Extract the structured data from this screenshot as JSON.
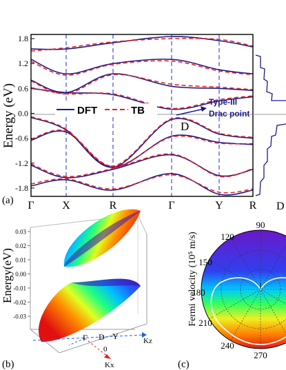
{
  "panel_a": {
    "label": "(a)",
    "ylabel": "Energy (eV)",
    "yticks": [
      "1.8",
      "1.2",
      "0.6",
      "0.0",
      "-0.6",
      "-1.2",
      "-1.8"
    ],
    "xticks": [
      "Γ",
      "X",
      "R",
      "Γ",
      "Y",
      "R"
    ],
    "legend": {
      "dft": "DFT",
      "tb": "TB"
    },
    "annotation": {
      "line1": "Type-III",
      "line2": "Drac point",
      "point": "D"
    },
    "dos_xlabel": "D"
  },
  "panel_b": {
    "label": "(b)",
    "zlabel": "Energy(eV)",
    "zticks": [
      "0.03",
      "0.02",
      "0.01",
      "0.00",
      "-0.01",
      "-0.02",
      "-0.03"
    ],
    "base_labels": {
      "gamma": "Γ",
      "d": "D",
      "y": "Y",
      "kz": "Kz",
      "kx": "Kx",
      "origin": "0"
    }
  },
  "panel_c": {
    "label": "(c)",
    "ylabel": "Fermi velocity (10⁵ m/s)",
    "angles": [
      "90",
      "120",
      "150",
      "180",
      "210",
      "240",
      "270"
    ]
  },
  "colors": {
    "dft": "#1a1a8c",
    "tb": "#e8201f",
    "vline": "#2b3fd6",
    "dos": "#1a1a8c",
    "annot": "#1a1a8c"
  },
  "chart_data": [
    {
      "type": "line",
      "title": "",
      "ylabel": "Energy (eV)",
      "ylim": [
        -2.0,
        1.9
      ],
      "categories": [
        "Γ",
        "X",
        "R",
        "Γ",
        "Y",
        "R"
      ],
      "series": [
        {
          "name": "DFT",
          "style": "solid",
          "bands": [
            [
              1.55,
              1.55,
              1.7,
              1.85,
              1.75,
              1.6
            ],
            [
              1.3,
              0.95,
              1.2,
              1.3,
              1.05,
              0.95
            ],
            [
              0.8,
              0.5,
              0.95,
              0.65,
              0.6,
              0.55
            ],
            [
              0.6,
              0.5,
              0.45,
              0.1,
              0.3,
              0.4
            ],
            [
              -0.1,
              -0.4,
              -1.3,
              -0.15,
              -0.5,
              -0.6
            ],
            [
              -0.65,
              -0.45,
              -1.3,
              -0.55,
              -0.7,
              -0.75
            ],
            [
              -1.25,
              -1.55,
              -1.35,
              -1.0,
              -1.5,
              -1.35
            ],
            [
              -1.75,
              -1.6,
              -1.85,
              -1.45,
              -1.95,
              -1.85
            ]
          ]
        },
        {
          "name": "TB",
          "style": "dashed",
          "bands": [
            [
              1.5,
              1.58,
              1.72,
              1.8,
              1.78,
              1.62
            ],
            [
              1.25,
              0.92,
              1.18,
              1.26,
              1.02,
              0.93
            ],
            [
              0.78,
              0.47,
              0.93,
              0.7,
              0.63,
              0.57
            ],
            [
              0.62,
              0.47,
              0.47,
              0.12,
              0.33,
              0.42
            ],
            [
              -0.08,
              -0.38,
              -1.27,
              -0.13,
              -0.48,
              -0.58
            ],
            [
              -0.62,
              -0.43,
              -1.28,
              -0.57,
              -0.72,
              -0.73
            ],
            [
              -1.22,
              -1.52,
              -1.33,
              -0.98,
              -1.52,
              -1.33
            ],
            [
              -1.7,
              -1.58,
              -1.82,
              -1.48,
              -1.9,
              -1.82
            ]
          ]
        }
      ]
    }
  ]
}
